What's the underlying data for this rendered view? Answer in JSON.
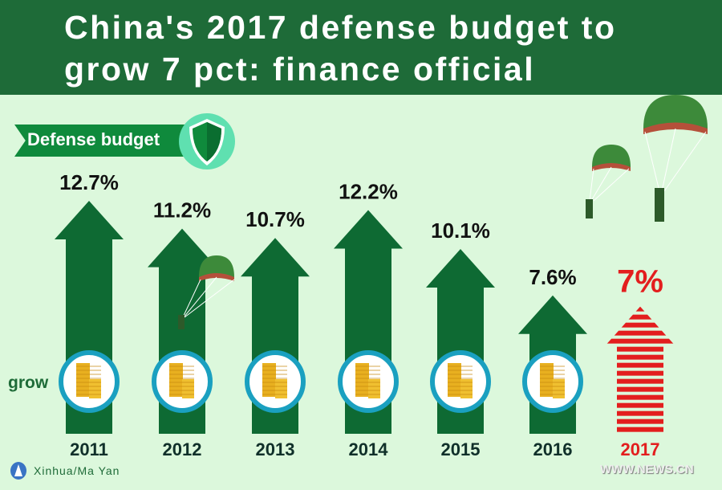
{
  "header": {
    "title": "China's 2017 defense budget to grow 7 pct: finance official"
  },
  "ribbon": {
    "label": "Defense budget",
    "icon": "shield-icon"
  },
  "side_label": "grow",
  "credit": "Xinhua/Ma Yan",
  "site": "WWW.NEWS.CN",
  "colors": {
    "header": "#1e6b38",
    "arrow": "#0e6a33",
    "highlight": "#e31e1e",
    "background": "#dcf8dc"
  },
  "chart_data": {
    "type": "bar",
    "title": "",
    "categories": [
      "2011",
      "2012",
      "2013",
      "2014",
      "2015",
      "2016",
      "2017"
    ],
    "values": [
      12.7,
      11.2,
      10.7,
      12.2,
      10.1,
      7.6,
      7
    ],
    "labels": [
      "12.7%",
      "11.2%",
      "10.7%",
      "12.2%",
      "10.1%",
      "7.6%",
      "7%"
    ],
    "highlight": "2017",
    "xlabel": "",
    "ylabel": ""
  }
}
